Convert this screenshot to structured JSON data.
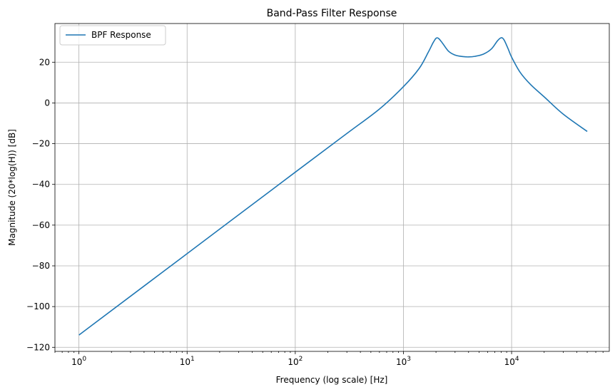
{
  "chart_data": {
    "type": "line",
    "title": "Band-Pass Filter Response",
    "xlabel": "Frequency (log scale) [Hz]",
    "ylabel": "Magnitude (20*log(H)) [dB]",
    "xscale": "log",
    "xlim": [
      0.6,
      80000
    ],
    "ylim": [
      -122,
      39
    ],
    "grid": true,
    "legend_position": "top-left",
    "x_tick_labels": [
      {
        "value": 1,
        "base": "10",
        "exp": "0"
      },
      {
        "value": 10,
        "base": "10",
        "exp": "1"
      },
      {
        "value": 100,
        "base": "10",
        "exp": "2"
      },
      {
        "value": 1000,
        "base": "10",
        "exp": "3"
      },
      {
        "value": 10000,
        "base": "10",
        "exp": "4"
      }
    ],
    "y_tick_labels": [
      {
        "value": 20,
        "label": "20"
      },
      {
        "value": 0,
        "label": "0"
      },
      {
        "value": -20,
        "label": "−20"
      },
      {
        "value": -40,
        "label": "−40"
      },
      {
        "value": -60,
        "label": "−60"
      },
      {
        "value": -80,
        "label": "−80"
      },
      {
        "value": -100,
        "label": "−100"
      },
      {
        "value": -120,
        "label": "−120"
      }
    ],
    "series": [
      {
        "name": "BPF Response",
        "color": "#1f77b4",
        "points": [
          [
            1,
            -114
          ],
          [
            10,
            -74
          ],
          [
            100,
            -34
          ],
          [
            300,
            -15
          ],
          [
            600,
            -3
          ],
          [
            1000,
            8
          ],
          [
            1400,
            17
          ],
          [
            1700,
            25
          ],
          [
            1900,
            30
          ],
          [
            2050,
            32
          ],
          [
            2250,
            30
          ],
          [
            2600,
            25.5
          ],
          [
            3000,
            23.5
          ],
          [
            3500,
            22.8
          ],
          [
            4000,
            22.6
          ],
          [
            4600,
            22.9
          ],
          [
            5500,
            24
          ],
          [
            6500,
            26.5
          ],
          [
            7400,
            30.5
          ],
          [
            8000,
            32
          ],
          [
            8500,
            31
          ],
          [
            9300,
            26.5
          ],
          [
            10000,
            22.5
          ],
          [
            12000,
            15
          ],
          [
            15000,
            9
          ],
          [
            20000,
            3
          ],
          [
            30000,
            -5.5
          ],
          [
            50000,
            -14
          ]
        ]
      }
    ]
  }
}
